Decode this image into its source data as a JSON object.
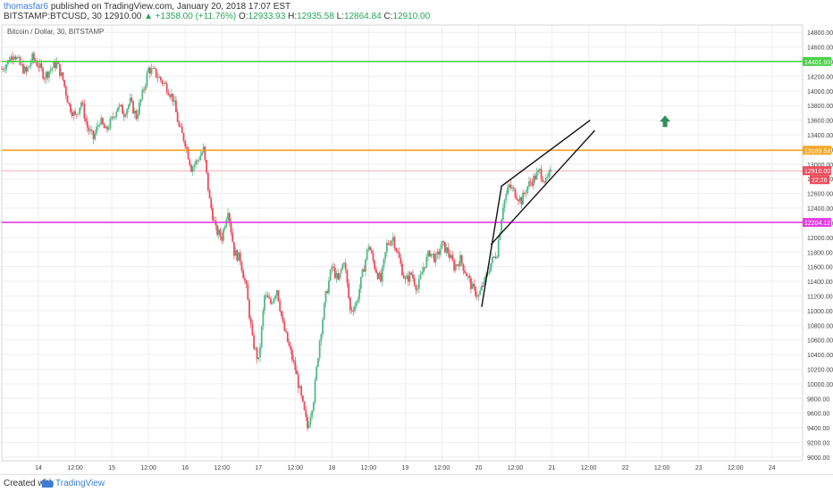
{
  "header": {
    "author": "thomasfar6",
    "published": "published on TradingView.com, January 20, 2018 17:07 EST",
    "symbol": "BITSTAMP:BTCUSD, 30",
    "price": "12910.00",
    "change": "▲ +1358.00 (+11.76%)",
    "o_label": "O:",
    "o_value": "12933.93",
    "h_label": "H:",
    "h_value": "12935.58",
    "l_label": "L:",
    "l_value": "12864.84",
    "c_label": "C:",
    "c_value": "12910.00"
  },
  "footer": {
    "created_with": "Created with",
    "brand": "TradingView"
  },
  "colors": {
    "up": "#53b987",
    "down": "#eb4d5c",
    "grid": "#eeeeee",
    "green_line": "#4cd14c",
    "orange_line": "#f5a623",
    "magenta_line": "#e040e0",
    "current_line": "#eb4d5c",
    "arrow": "#2f8f5b"
  },
  "chart_data": {
    "type": "candlestick",
    "title": "Bitcoin / Dollar, 30, BITSTAMP",
    "y_ticks": [
      9000,
      9200,
      9400,
      9600,
      9800,
      10000,
      10200,
      10400,
      10600,
      10800,
      11000,
      11200,
      11400,
      11600,
      11800,
      12000,
      12200,
      12400,
      12600,
      12800,
      13000,
      13200,
      13400,
      13600,
      13800,
      14000,
      14200,
      14400,
      14600,
      14800
    ],
    "ylim": [
      8950,
      14900
    ],
    "x_tick_labels": [
      "14",
      "12:00",
      "15",
      "12:00",
      "16",
      "12:00",
      "17",
      "12:00",
      "18",
      "12:00",
      "19",
      "12:00",
      "20",
      "12:00",
      "21",
      "12:00",
      "22",
      "12:00",
      "23",
      "12:00",
      "24"
    ],
    "x_tick_hours": [
      24,
      36,
      48,
      60,
      72,
      84,
      96,
      108,
      120,
      132,
      144,
      156,
      168,
      180,
      192,
      204,
      216,
      228,
      240,
      252,
      264
    ],
    "x_range_hours": [
      12,
      274
    ],
    "horizontal_levels": [
      {
        "value": 14401.93,
        "label": "14401.93",
        "color": "#4cd14c"
      },
      {
        "value": 13189.54,
        "label": "13189.54",
        "color": "#f5a623"
      },
      {
        "value": 12910.0,
        "label": "12910.00",
        "color": "#eb4d5c"
      },
      {
        "value": 12204.12,
        "label": "12204.12",
        "color": "#e040e0"
      }
    ],
    "badge_text": "22:26",
    "trend_lines": [
      {
        "points": [
          [
            169,
            11050
          ],
          [
            175.5,
            12700
          ],
          [
            204.5,
            13600
          ]
        ]
      },
      {
        "points": [
          [
            172,
            11900
          ],
          [
            206,
            13460
          ]
        ]
      }
    ],
    "up_arrow": {
      "hour": 229,
      "value": 13580
    },
    "price_path": [
      [
        12,
        14300
      ],
      [
        14,
        14400
      ],
      [
        16,
        14520
      ],
      [
        18,
        14350
      ],
      [
        20,
        14250
      ],
      [
        22,
        14450
      ],
      [
        24,
        14350
      ],
      [
        26,
        14200
      ],
      [
        28,
        14300
      ],
      [
        30,
        14380
      ],
      [
        32,
        14150
      ],
      [
        34,
        13800
      ],
      [
        36,
        13650
      ],
      [
        38,
        13850
      ],
      [
        40,
        13500
      ],
      [
        42,
        13350
      ],
      [
        44,
        13600
      ],
      [
        46,
        13450
      ],
      [
        48,
        13600
      ],
      [
        50,
        13800
      ],
      [
        52,
        13700
      ],
      [
        54,
        13850
      ],
      [
        56,
        13650
      ],
      [
        58,
        13950
      ],
      [
        60,
        14300
      ],
      [
        62,
        14250
      ],
      [
        64,
        14150
      ],
      [
        66,
        14050
      ],
      [
        68,
        13900
      ],
      [
        70,
        13500
      ],
      [
        72,
        13300
      ],
      [
        74,
        12950
      ],
      [
        76,
        13050
      ],
      [
        78,
        13200
      ],
      [
        80,
        12500
      ],
      [
        82,
        12100
      ],
      [
        84,
        12000
      ],
      [
        86,
        12400
      ],
      [
        88,
        11800
      ],
      [
        90,
        11700
      ],
      [
        92,
        11300
      ],
      [
        94,
        10600
      ],
      [
        96,
        10300
      ],
      [
        98,
        11200
      ],
      [
        100,
        11100
      ],
      [
        102,
        11300
      ],
      [
        104,
        10800
      ],
      [
        106,
        10500
      ],
      [
        108,
        10200
      ],
      [
        110,
        9800
      ],
      [
        112,
        9400
      ],
      [
        114,
        9800
      ],
      [
        116,
        10600
      ],
      [
        118,
        11200
      ],
      [
        120,
        11600
      ],
      [
        122,
        11400
      ],
      [
        124,
        11700
      ],
      [
        126,
        11000
      ],
      [
        128,
        11100
      ],
      [
        130,
        11500
      ],
      [
        132,
        11900
      ],
      [
        134,
        11600
      ],
      [
        136,
        11400
      ],
      [
        138,
        11900
      ],
      [
        140,
        12000
      ],
      [
        142,
        11700
      ],
      [
        144,
        11400
      ],
      [
        146,
        11500
      ],
      [
        148,
        11300
      ],
      [
        150,
        11600
      ],
      [
        152,
        11800
      ],
      [
        154,
        11700
      ],
      [
        156,
        11900
      ],
      [
        158,
        11800
      ],
      [
        160,
        11600
      ],
      [
        162,
        11700
      ],
      [
        164,
        11500
      ],
      [
        166,
        11300
      ],
      [
        168,
        11200
      ],
      [
        170,
        11400
      ],
      [
        172,
        11650
      ],
      [
        174,
        11800
      ],
      [
        176,
        12450
      ],
      [
        178,
        12700
      ],
      [
        180,
        12600
      ],
      [
        182,
        12500
      ],
      [
        184,
        12700
      ],
      [
        186,
        12800
      ],
      [
        188,
        12900
      ],
      [
        190,
        12750
      ],
      [
        192,
        12910
      ]
    ]
  }
}
